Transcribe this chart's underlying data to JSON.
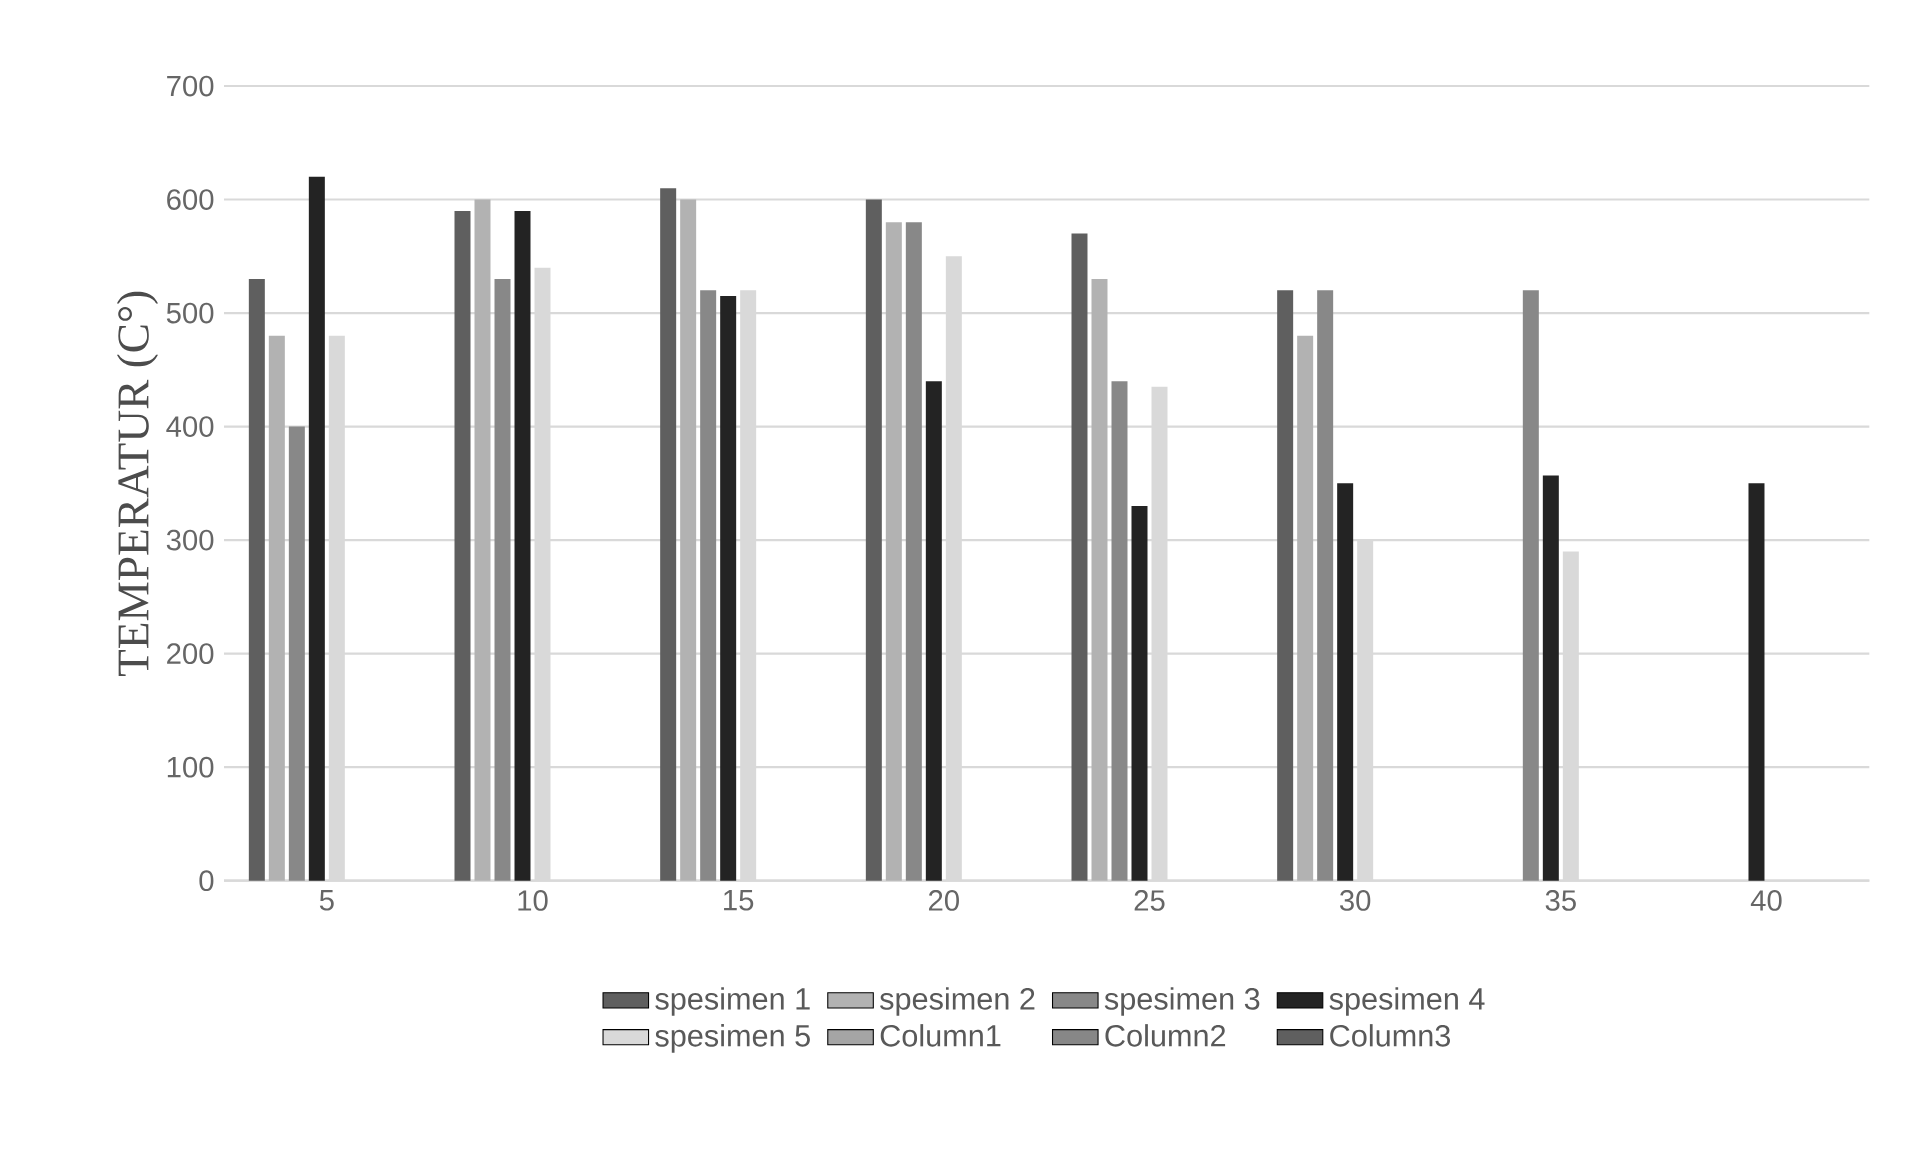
{
  "chart_data": {
    "type": "bar",
    "ylabel": "TEMPERATUR  (C°)",
    "categories": [
      "5",
      "10",
      "15",
      "20",
      "25",
      "30",
      "35",
      "40"
    ],
    "series": [
      {
        "name": "spesimen 1",
        "color": "#5f5f5f",
        "values": [
          530,
          590,
          610,
          600,
          570,
          520,
          null,
          null
        ]
      },
      {
        "name": "spesimen 2",
        "color": "#b2b2b2",
        "values": [
          480,
          600,
          600,
          580,
          530,
          480,
          null,
          null
        ]
      },
      {
        "name": "spesimen 3",
        "color": "#888888",
        "values": [
          400,
          530,
          520,
          580,
          440,
          520,
          520,
          null
        ]
      },
      {
        "name": "spesimen 4",
        "color": "#232323",
        "values": [
          620,
          590,
          515,
          440,
          330,
          350,
          357,
          350
        ]
      },
      {
        "name": "spesimen 5",
        "color": "#d9d9d9",
        "values": [
          480,
          540,
          520,
          550,
          435,
          300,
          290,
          null
        ]
      },
      {
        "name": "Column1",
        "color": "#a5a5a5",
        "values": [
          null,
          null,
          null,
          null,
          null,
          null,
          null,
          null
        ]
      },
      {
        "name": "Column2",
        "color": "#878787",
        "values": [
          null,
          null,
          null,
          null,
          null,
          null,
          null,
          null
        ]
      },
      {
        "name": "Column3",
        "color": "#5f5f5f",
        "values": [
          null,
          null,
          null,
          null,
          null,
          null,
          null,
          null
        ]
      }
    ],
    "ylim": [
      0,
      700
    ],
    "yticks": [
      0,
      100,
      200,
      300,
      400,
      500,
      600,
      700
    ],
    "grid": "y",
    "legend": "bottom"
  }
}
